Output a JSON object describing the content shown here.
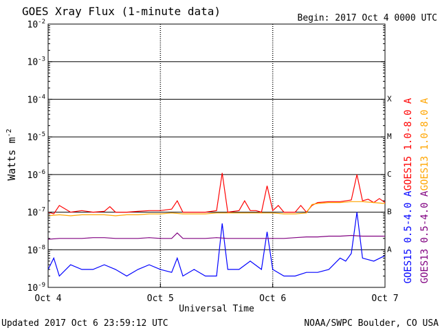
{
  "header": {
    "title": "GOES Xray Flux (1-minute data)",
    "begin": "Begin:  2017 Oct 4 0000 UTC"
  },
  "footer": {
    "updated": "Updated 2017 Oct  6 23:59:12 UTC",
    "credit": "NOAA/SWPC Boulder, CO USA"
  },
  "colors": {
    "goes15_long": "#ff0000",
    "goes13_long": "#ffa500",
    "goes15_short": "#0000ff",
    "goes13_short": "#800080",
    "axis": "#000000",
    "background": "#ffffff"
  },
  "chart_data": {
    "type": "line",
    "title": "GOES Xray Flux (1-minute data)",
    "xlabel": "Universal Time",
    "ylabel": "Watts m",
    "ylabel_exponent": "-2",
    "yscale": "log",
    "ylim": [
      1e-09,
      0.01
    ],
    "xlim": [
      0,
      3
    ],
    "x_ticks": [
      {
        "x": 0,
        "label": "Oct 4"
      },
      {
        "x": 1,
        "label": "Oct 5"
      },
      {
        "x": 2,
        "label": "Oct 6"
      },
      {
        "x": 3,
        "label": "Oct 7"
      }
    ],
    "y_ticks": [
      {
        "exp": -2,
        "base": "10",
        "sup": "-2"
      },
      {
        "exp": -3,
        "base": "10",
        "sup": "-3"
      },
      {
        "exp": -4,
        "base": "10",
        "sup": "-4"
      },
      {
        "exp": -5,
        "base": "10",
        "sup": "-5"
      },
      {
        "exp": -6,
        "base": "10",
        "sup": "-6"
      },
      {
        "exp": -7,
        "base": "10",
        "sup": "-7"
      },
      {
        "exp": -8,
        "base": "10",
        "sup": "-8"
      },
      {
        "exp": -9,
        "base": "10",
        "sup": "-9"
      }
    ],
    "flare_classes": [
      {
        "label": "X",
        "exp": -4
      },
      {
        "label": "M",
        "exp": -5
      },
      {
        "label": "C",
        "exp": -6
      },
      {
        "label": "B",
        "exp": -7
      },
      {
        "label": "A",
        "exp": -8
      }
    ],
    "gridlines_y": [
      -3,
      -4,
      -5,
      -6,
      -7,
      -8
    ],
    "legend_placement": "right, vertical",
    "legend": [
      {
        "name": "GOES15 1.0-8.0 A",
        "color": "#ff0000"
      },
      {
        "name": "GOES13 1.0-8.0 A",
        "color": "#ffa500"
      },
      {
        "name": "GOES15 0.5-4.0 A",
        "color": "#0000ff"
      },
      {
        "name": "GOES13 0.5-4.0 A",
        "color": "#800080"
      }
    ],
    "series": [
      {
        "name": "GOES15 1.0-8.0 A",
        "color": "#ff0000",
        "x": [
          0.0,
          0.05,
          0.1,
          0.2,
          0.3,
          0.4,
          0.5,
          0.55,
          0.6,
          0.7,
          0.8,
          0.9,
          1.0,
          1.1,
          1.15,
          1.2,
          1.3,
          1.4,
          1.5,
          1.55,
          1.6,
          1.7,
          1.75,
          1.8,
          1.85,
          1.9,
          1.95,
          2.0,
          2.05,
          2.1,
          2.2,
          2.25,
          2.3,
          2.35,
          2.4,
          2.5,
          2.6,
          2.7,
          2.75,
          2.8,
          2.85,
          2.9,
          2.95,
          3.0
        ],
        "y": [
          1e-07,
          9e-08,
          1.5e-07,
          1e-07,
          1.1e-07,
          1e-07,
          1.05e-07,
          1.4e-07,
          1e-07,
          1e-07,
          1.05e-07,
          1.1e-07,
          1.1e-07,
          1.2e-07,
          2e-07,
          1e-07,
          1e-07,
          1e-07,
          1.1e-07,
          1.1e-06,
          1e-07,
          1.1e-07,
          2e-07,
          1.1e-07,
          1.1e-07,
          1e-07,
          5e-07,
          1.1e-07,
          1.5e-07,
          1e-07,
          1e-07,
          1.5e-07,
          1e-07,
          1.5e-07,
          1.8e-07,
          1.9e-07,
          1.9e-07,
          2.1e-07,
          1e-06,
          2e-07,
          2.2e-07,
          1.8e-07,
          2.3e-07,
          1.8e-07
        ]
      },
      {
        "name": "GOES13 1.0-8.0 A",
        "color": "#ffa500",
        "x": [
          0.0,
          0.1,
          0.2,
          0.3,
          0.4,
          0.5,
          0.6,
          0.7,
          0.8,
          0.9,
          1.0,
          1.1,
          1.2,
          1.3,
          1.4,
          1.5,
          1.6,
          1.7,
          1.8,
          1.9,
          2.0,
          2.1,
          2.2,
          2.3,
          2.35,
          2.4,
          2.5,
          2.6,
          2.7,
          2.8,
          2.9,
          3.0
        ],
        "y": [
          8e-08,
          8.5e-08,
          8e-08,
          8.5e-08,
          8.5e-08,
          8.5e-08,
          8e-08,
          8.5e-08,
          8.5e-08,
          9e-08,
          9e-08,
          9.5e-08,
          9e-08,
          9e-08,
          9e-08,
          9.5e-08,
          9.5e-08,
          9.5e-08,
          9.5e-08,
          9.5e-08,
          9.5e-08,
          9e-08,
          9e-08,
          9.5e-08,
          1.6e-07,
          1.7e-07,
          1.8e-07,
          1.8e-07,
          1.9e-07,
          1.9e-07,
          1.8e-07,
          1.7e-07
        ]
      },
      {
        "name": "GOES15 0.5-4.0 A",
        "color": "#0000ff",
        "x": [
          0.0,
          0.05,
          0.1,
          0.2,
          0.3,
          0.4,
          0.5,
          0.6,
          0.7,
          0.8,
          0.9,
          1.0,
          1.1,
          1.15,
          1.2,
          1.3,
          1.4,
          1.5,
          1.55,
          1.6,
          1.7,
          1.8,
          1.9,
          1.95,
          2.0,
          2.1,
          2.2,
          2.3,
          2.4,
          2.5,
          2.6,
          2.65,
          2.7,
          2.75,
          2.8,
          2.9,
          3.0
        ],
        "y": [
          3e-09,
          6e-09,
          2e-09,
          4e-09,
          3e-09,
          3e-09,
          4e-09,
          3e-09,
          2e-09,
          3e-09,
          4e-09,
          3e-09,
          2.5e-09,
          6e-09,
          2e-09,
          3e-09,
          2e-09,
          2e-09,
          5e-08,
          3e-09,
          3e-09,
          5e-09,
          3e-09,
          3e-08,
          3e-09,
          2e-09,
          2e-09,
          2.5e-09,
          2.5e-09,
          3e-09,
          6e-09,
          5e-09,
          8e-09,
          1e-07,
          6e-09,
          5e-09,
          7e-09
        ]
      },
      {
        "name": "GOES13 0.5-4.0 A",
        "color": "#800080",
        "x": [
          0.0,
          0.1,
          0.2,
          0.3,
          0.4,
          0.5,
          0.6,
          0.7,
          0.8,
          0.9,
          1.0,
          1.1,
          1.15,
          1.2,
          1.3,
          1.4,
          1.5,
          1.6,
          1.7,
          1.8,
          1.9,
          2.0,
          2.1,
          2.2,
          2.3,
          2.4,
          2.5,
          2.6,
          2.7,
          2.8,
          2.9,
          3.0
        ],
        "y": [
          1.9e-08,
          2e-08,
          2e-08,
          2e-08,
          2.1e-08,
          2.1e-08,
          2e-08,
          2e-08,
          2e-08,
          2.1e-08,
          2e-08,
          2e-08,
          2.8e-08,
          2e-08,
          2e-08,
          2e-08,
          2.1e-08,
          2e-08,
          2e-08,
          2e-08,
          2e-08,
          2e-08,
          2e-08,
          2.1e-08,
          2.2e-08,
          2.2e-08,
          2.3e-08,
          2.3e-08,
          2.4e-08,
          2.3e-08,
          2.3e-08,
          2.3e-08
        ]
      }
    ]
  }
}
